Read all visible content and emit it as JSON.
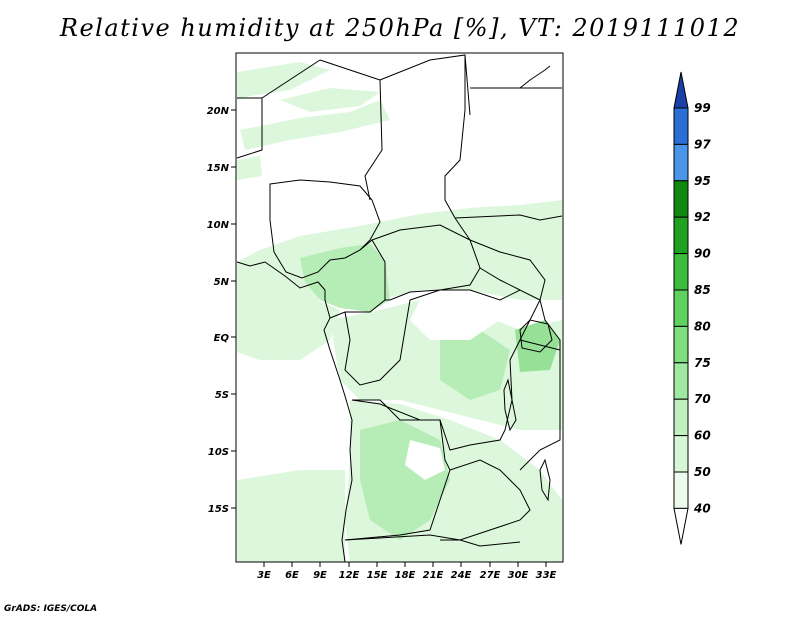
{
  "title": "Relative humidity at 250hPa [%], VT: 2019111012",
  "credit": "GrADS: IGES/COLA",
  "map": {
    "lat_ticks": [
      "20N",
      "15N",
      "10N",
      "5N",
      "EQ",
      "5S",
      "10S",
      "15S"
    ],
    "lon_ticks": [
      "3E",
      "6E",
      "9E",
      "12E",
      "15E",
      "18E",
      "21E",
      "24E",
      "27E",
      "30E",
      "33E"
    ]
  },
  "colorbar": {
    "levels": [
      "99",
      "97",
      "95",
      "92",
      "90",
      "85",
      "80",
      "75",
      "70",
      "60",
      "50",
      "40"
    ],
    "colors": [
      "#1a3fa8",
      "#2a6fd6",
      "#4a95e8",
      "#0f8a0f",
      "#1fa21f",
      "#3dbb3d",
      "#5fd15f",
      "#7fdf7f",
      "#a0e9a0",
      "#bff1bf",
      "#d6f7d6",
      "#ecfcec",
      "#ffffff"
    ]
  },
  "colors": {
    "land_fill": "#ffffff",
    "moist_light": "#dcf7dc",
    "moist_mid": "#b6ecb6",
    "moist_dark": "#96e196",
    "border": "#000000"
  }
}
